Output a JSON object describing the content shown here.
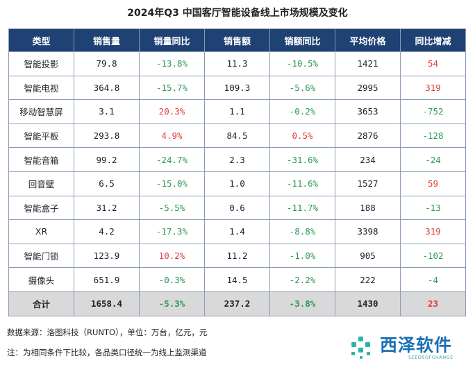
{
  "title": "2024年Q3 中国客厅智能设备线上市场规模及变化",
  "colors": {
    "header_bg": "#1f4173",
    "negative": "#2a9a58",
    "positive": "#e23a3a",
    "total_bg": "#d9d9d9"
  },
  "chart_data": {
    "type": "table",
    "title": "2024年Q3 中国客厅智能设备线上市场规模及变化",
    "columns": [
      "类型",
      "销售量",
      "销量同比",
      "销售额",
      "销额同比",
      "平均价格",
      "同比增减"
    ],
    "rows": [
      [
        "智能投影",
        "79.8",
        "-13.8%",
        "11.3",
        "-10.5%",
        "1421",
        "54"
      ],
      [
        "智能电视",
        "364.8",
        "-15.7%",
        "109.3",
        "-5.6%",
        "2995",
        "319"
      ],
      [
        "移动智慧屏",
        "3.1",
        "20.3%",
        "1.1",
        "-0.2%",
        "3653",
        "-752"
      ],
      [
        "智能平板",
        "293.8",
        "4.9%",
        "84.5",
        "0.5%",
        "2876",
        "-128"
      ],
      [
        "智能音箱",
        "99.2",
        "-24.7%",
        "2.3",
        "-31.6%",
        "234",
        "-24"
      ],
      [
        "回音壁",
        "6.5",
        "-15.0%",
        "1.0",
        "-11.6%",
        "1527",
        "59"
      ],
      [
        "智能盒子",
        "31.2",
        "-5.5%",
        "0.6",
        "-11.7%",
        "188",
        "-13"
      ],
      [
        "XR",
        "4.2",
        "-17.3%",
        "1.4",
        "-8.8%",
        "3398",
        "319"
      ],
      [
        "智能门锁",
        "123.9",
        "10.2%",
        "11.2",
        "-1.0%",
        "905",
        "-102"
      ],
      [
        "摄像头",
        "651.9",
        "-0.3%",
        "14.5",
        "-2.2%",
        "222",
        "-4"
      ]
    ],
    "total": [
      "合计",
      "1658.4",
      "-5.3%",
      "237.2",
      "-3.8%",
      "1430",
      "23"
    ]
  },
  "footer": {
    "source": "数据来源：洛图科技（RUNTO），单位：万台，亿元，元",
    "note": "注：为相同条件下比较，各品类口径统一为线上监测渠道"
  },
  "logo": {
    "name": "西泽软件",
    "sub": "SEEDSOFCHANGE",
    "icon": "logo-mark-icon"
  }
}
